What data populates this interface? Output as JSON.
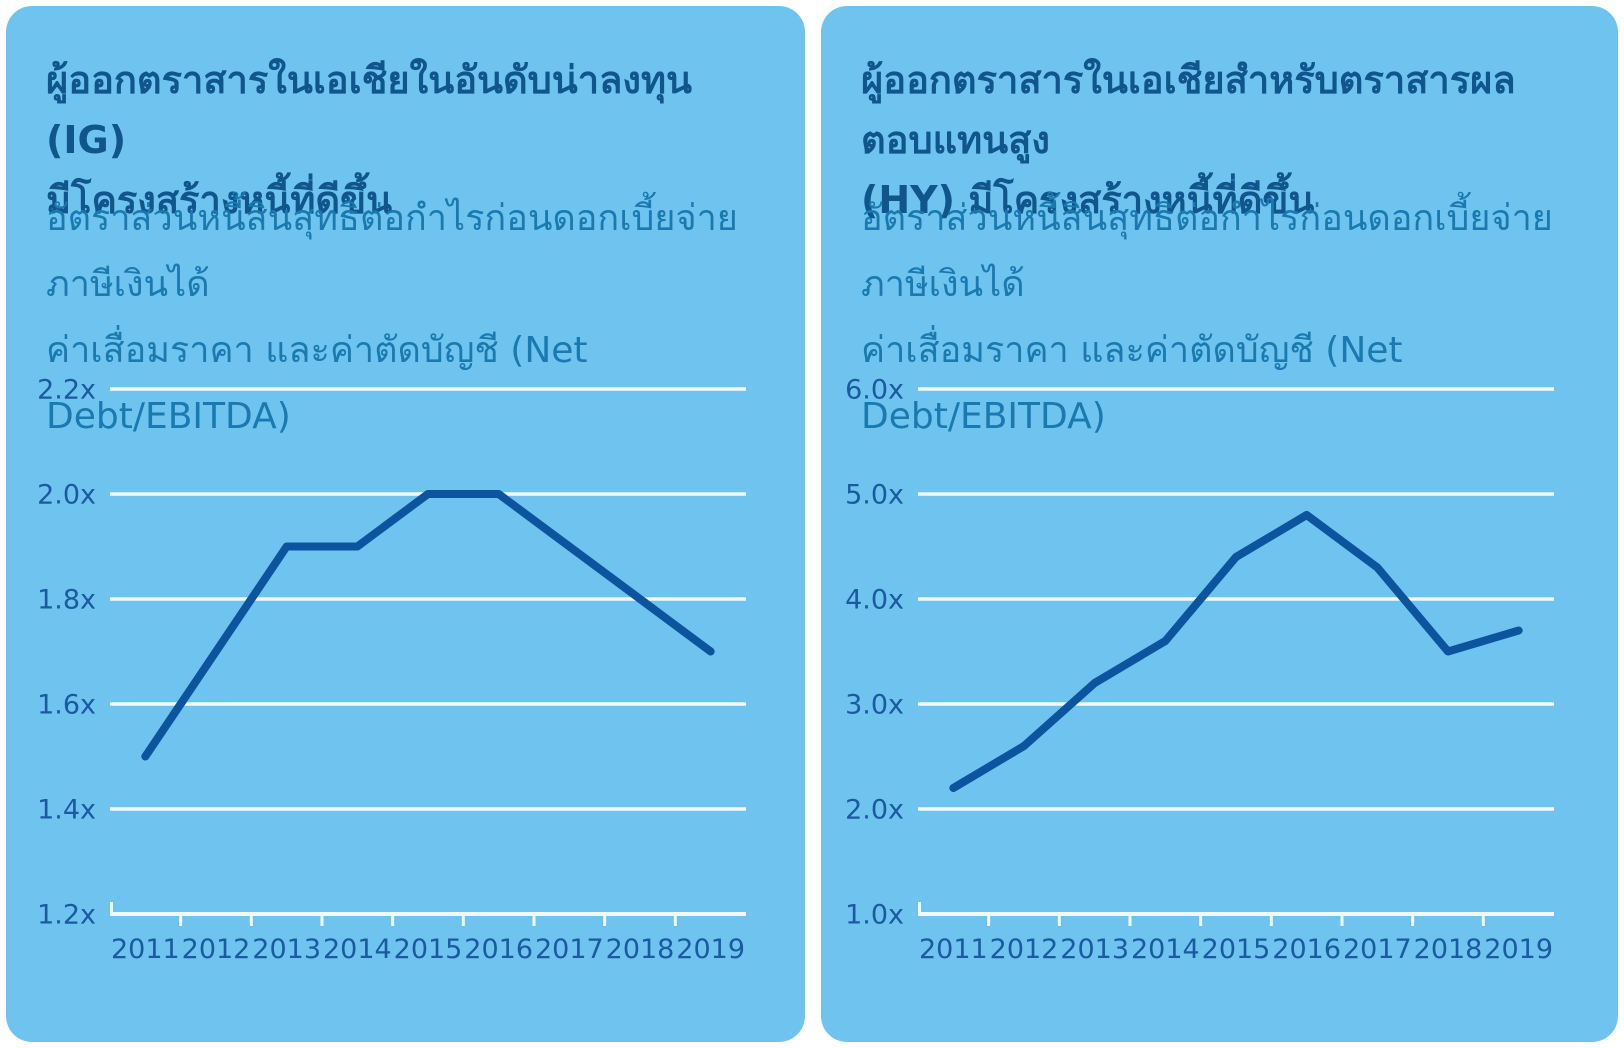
{
  "colors": {
    "page_bg": "#FFFFFF",
    "card_bg": "#6EC4EF",
    "title": "#10558C",
    "subtitle": "#1A7AB0",
    "axis_label": "#1B5AA0",
    "grid": "#F3F8FB",
    "line": "#0D549E"
  },
  "chart_data": [
    {
      "type": "line",
      "title": "ผู้ออกตราสารในเอเชียในอันดับน่าลงทุน (IG) มีโครงสร้างหนี้ที่ดีขึ้น",
      "title_lines": [
        "ผู้ออกตราสารในเอเชียในอันดับน่าลงทุน (IG)",
        "มีโครงสร้างหนี้ที่ดีขึ้น"
      ],
      "subtitle": "อัตราส่วนหนี้สินสุทธิต่อกำไรก่อนดอกเบี้ยจ่าย ภาษีเงินได้ ค่าเสื่อมราคา และค่าตัดบัญชี (Net Debt/EBITDA)",
      "subtitle_lines": [
        "อัตราส่วนหนี้สินสุทธิต่อกำไรก่อนดอกเบี้ยจ่าย ภาษีเงินได้",
        "ค่าเสื่อมราคา และค่าตัดบัญชี (Net Debt/EBITDA)"
      ],
      "categories": [
        "2011",
        "2012",
        "2013",
        "2014",
        "2015",
        "2016",
        "2017",
        "2018",
        "2019"
      ],
      "values": [
        1.5,
        1.7,
        1.9,
        1.9,
        2.0,
        2.0,
        1.9,
        1.8,
        1.7
      ],
      "ylim": [
        1.2,
        2.2
      ],
      "y_tick_step": 0.2,
      "y_tick_labels": [
        "1.2x",
        "1.4x",
        "1.6x",
        "1.8x",
        "2.0x",
        "2.2x"
      ],
      "unit_suffix": "x",
      "grid": true,
      "legend": "none",
      "xlabel": "",
      "ylabel": ""
    },
    {
      "type": "line",
      "title": "ผู้ออกตราสารในเอเชียสำหรับตราสารผลตอบแทนสูง (HY) มีโครงสร้างหนี้ที่ดีขึ้น",
      "title_lines": [
        "ผู้ออกตราสารในเอเชียสำหรับตราสารผลตอบแทนสูง",
        "(HY) มีโครงสร้างหนี้ที่ดีขึ้น"
      ],
      "subtitle": "อัตราส่วนหนี้สินสุทธิต่อกำไรก่อนดอกเบี้ยจ่าย ภาษีเงินได้ ค่าเสื่อมราคา และค่าตัดบัญชี (Net Debt/EBITDA)",
      "subtitle_lines": [
        "อัตราส่วนหนี้สินสุทธิต่อกำไรก่อนดอกเบี้ยจ่าย ภาษีเงินได้",
        "ค่าเสื่อมราคา และค่าตัดบัญชี (Net Debt/EBITDA)"
      ],
      "categories": [
        "2011",
        "2012",
        "2013",
        "2014",
        "2015",
        "2016",
        "2017",
        "2018",
        "2019"
      ],
      "values": [
        2.2,
        2.6,
        3.2,
        3.6,
        4.4,
        4.8,
        4.3,
        3.5,
        3.7
      ],
      "ylim": [
        1.0,
        6.0
      ],
      "y_tick_step": 1.0,
      "y_tick_labels": [
        "1.0x",
        "2.0x",
        "3.0x",
        "4.0x",
        "5.0x",
        "6.0x"
      ],
      "unit_suffix": "x",
      "grid": true,
      "legend": "none",
      "xlabel": "",
      "ylabel": ""
    }
  ]
}
